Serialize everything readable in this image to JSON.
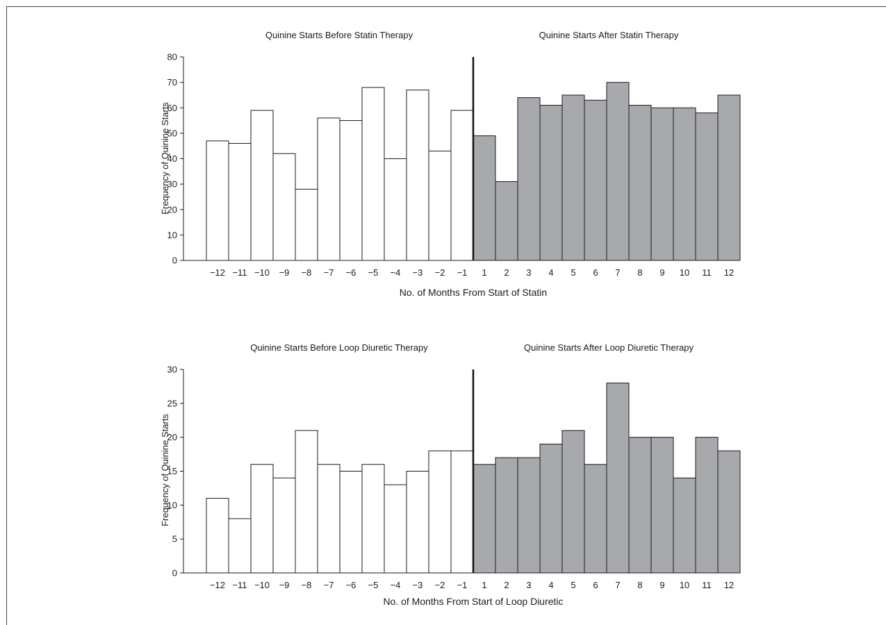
{
  "chart_data": [
    {
      "type": "bar",
      "title_left": "Quinine Starts Before Statin Therapy",
      "title_right": "Quinine Starts After Statin Therapy",
      "xlabel": "No. of Months From Start of Statin",
      "ylabel": "Frequency of Quinine Starts",
      "ylim": [
        0,
        80
      ],
      "yticks": [
        0,
        10,
        20,
        30,
        40,
        50,
        60,
        70,
        80
      ],
      "grid": false,
      "categories": [
        "−12",
        "−11",
        "−10",
        "−9",
        "−8",
        "−7",
        "−6",
        "−5",
        "−4",
        "−3",
        "−2",
        "−1",
        "1",
        "2",
        "3",
        "4",
        "5",
        "6",
        "7",
        "8",
        "9",
        "10",
        "11",
        "12"
      ],
      "values": [
        47,
        46,
        59,
        42,
        28,
        56,
        55,
        68,
        40,
        67,
        43,
        59,
        49,
        31,
        64,
        61,
        65,
        63,
        70,
        61,
        60,
        60,
        58,
        65
      ],
      "before_color": "#ffffff",
      "after_color": "#a7a9ac"
    },
    {
      "type": "bar",
      "title_left": "Quinine Starts Before Loop Diuretic Therapy",
      "title_right": "Quinine Starts After Loop Diuretic Therapy",
      "xlabel": "No. of Months From Start of Loop Diuretic",
      "ylabel": "Frequency of Quinine Starts",
      "ylim": [
        0,
        30
      ],
      "yticks": [
        0,
        5,
        10,
        15,
        20,
        25,
        30
      ],
      "grid": false,
      "categories": [
        "−12",
        "−11",
        "−10",
        "−9",
        "−8",
        "−7",
        "−6",
        "−5",
        "−4",
        "−3",
        "−2",
        "−1",
        "1",
        "2",
        "3",
        "4",
        "5",
        "6",
        "7",
        "8",
        "9",
        "10",
        "11",
        "12"
      ],
      "values": [
        11,
        8,
        16,
        14,
        21,
        16,
        15,
        16,
        13,
        15,
        18,
        18,
        16,
        17,
        17,
        19,
        21,
        16,
        28,
        20,
        20,
        14,
        20,
        18
      ],
      "before_color": "#ffffff",
      "after_color": "#a7a9ac"
    }
  ]
}
